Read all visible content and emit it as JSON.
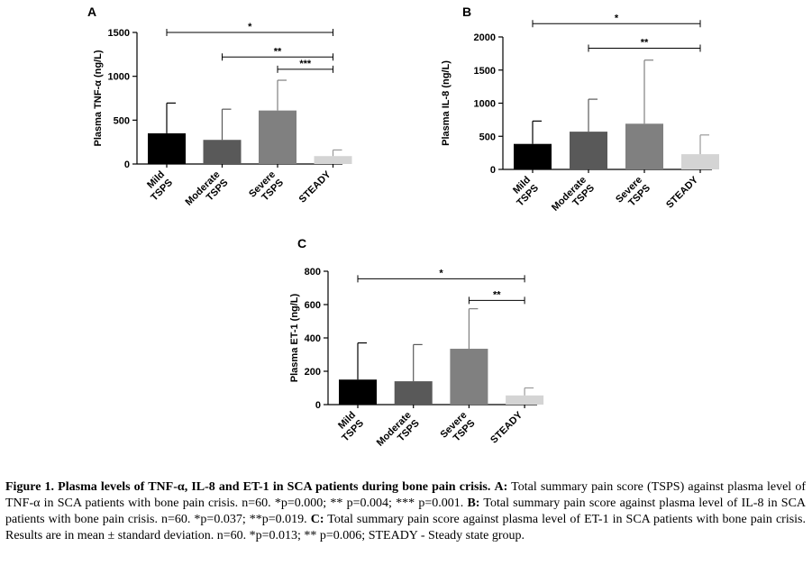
{
  "chart_data": [
    {
      "panel": "A",
      "type": "bar",
      "ylabel": "Plasma TNF-α (ng/L)",
      "categories": [
        [
          "Mild",
          "TSPS"
        ],
        [
          "Moderate",
          "TSPS"
        ],
        [
          "Severe",
          "TSPS"
        ],
        [
          "STEADY"
        ]
      ],
      "values": [
        350,
        275,
        610,
        90
      ],
      "errors": [
        345,
        350,
        345,
        70
      ],
      "colors": [
        "#000000",
        "#595959",
        "#808080",
        "#d4d4d4"
      ],
      "ylim": [
        0,
        1500
      ],
      "yticks": [
        0,
        500,
        1000,
        1500
      ],
      "significance": [
        {
          "from": 0,
          "to": 3,
          "label": "*",
          "y": 1500
        },
        {
          "from": 1,
          "to": 3,
          "label": "**",
          "y": 1220
        },
        {
          "from": 2,
          "to": 3,
          "label": "***",
          "y": 1080
        }
      ]
    },
    {
      "panel": "B",
      "type": "bar",
      "ylabel": "Plasma IL-8 (ng/L)",
      "categories": [
        [
          "Mild",
          "TSPS"
        ],
        [
          "Moderate",
          "TSPS"
        ],
        [
          "Severe",
          "TSPS"
        ],
        [
          "STEADY"
        ]
      ],
      "values": [
        385,
        570,
        690,
        230
      ],
      "errors": [
        345,
        490,
        960,
        290
      ],
      "colors": [
        "#000000",
        "#595959",
        "#808080",
        "#d4d4d4"
      ],
      "ylim": [
        0,
        2000
      ],
      "yticks": [
        0,
        500,
        1000,
        1500,
        2000
      ],
      "significance": [
        {
          "from": 0,
          "to": 3,
          "label": "*",
          "y": 2200
        },
        {
          "from": 1,
          "to": 3,
          "label": "**",
          "y": 1830
        }
      ]
    },
    {
      "panel": "C",
      "type": "bar",
      "ylabel": "Plasma ET-1 (ng/L)",
      "categories": [
        [
          "Mild",
          "TSPS"
        ],
        [
          "Moderate",
          "TSPS"
        ],
        [
          "Severe",
          "TSPS"
        ],
        [
          "STEADY"
        ]
      ],
      "values": [
        150,
        140,
        335,
        55
      ],
      "errors": [
        220,
        220,
        240,
        45
      ],
      "colors": [
        "#000000",
        "#595959",
        "#808080",
        "#d4d4d4"
      ],
      "ylim": [
        0,
        800
      ],
      "yticks": [
        0,
        200,
        400,
        600,
        800
      ],
      "significance": [
        {
          "from": 0,
          "to": 3,
          "label": "*",
          "y": 755
        },
        {
          "from": 2,
          "to": 3,
          "label": "**",
          "y": 625
        }
      ]
    }
  ],
  "caption": {
    "title": "Figure 1. Plasma levels of TNF-α, IL-8 and ET-1 in SCA patients during bone pain crisis.",
    "a_label": "A:",
    "a_text": "Total summary pain score (TSPS) against plasma level of TNF-α in SCA patients with bone pain crisis. n=60. *p=0.000; ** p=0.004; *** p=0.001.",
    "b_label": "B:",
    "b_text": "Total summary pain score against plasma level of IL-8 in SCA patients with bone pain crisis. n=60. *p=0.037; **p=0.019.",
    "c_label": "C:",
    "c_text": "Total summary pain score against plasma level of ET-1 in SCA patients with bone pain crisis. Results are in mean ± standard deviation. n=60. *p=0.013; ** p=0.006; STEADY - Steady state group."
  }
}
